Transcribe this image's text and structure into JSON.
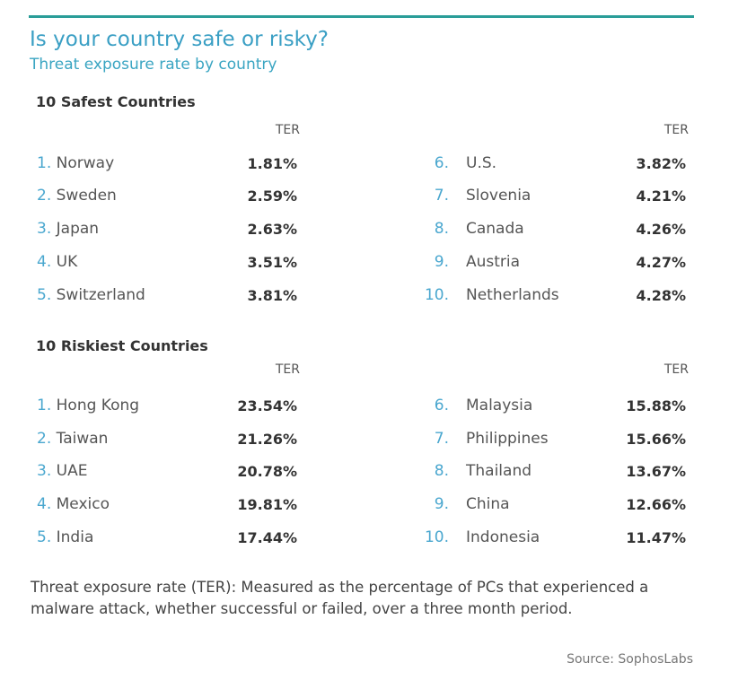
{
  "title": "Is your country safe or risky?",
  "subtitle": "Threat exposure rate by country",
  "column_label": "TER",
  "safest": {
    "heading": "10 Safest Countries",
    "rows": [
      {
        "rank": "1.",
        "country": "Norway",
        "ter": "1.81%"
      },
      {
        "rank": "2.",
        "country": "Sweden",
        "ter": "2.59%"
      },
      {
        "rank": "3.",
        "country": "Japan",
        "ter": "2.63%"
      },
      {
        "rank": "4.",
        "country": "UK",
        "ter": "3.51%"
      },
      {
        "rank": "5.",
        "country": "Switzerland",
        "ter": "3.81%"
      },
      {
        "rank": "6.",
        "country": "U.S.",
        "ter": "3.82%"
      },
      {
        "rank": "7.",
        "country": "Slovenia",
        "ter": "4.21%"
      },
      {
        "rank": "8.",
        "country": "Canada",
        "ter": "4.26%"
      },
      {
        "rank": "9.",
        "country": "Austria",
        "ter": "4.27%"
      },
      {
        "rank": "10.",
        "country": "Netherlands",
        "ter": "4.28%"
      }
    ]
  },
  "riskiest": {
    "heading": "10 Riskiest Countries",
    "rows": [
      {
        "rank": "1.",
        "country": "Hong Kong",
        "ter": "23.54%"
      },
      {
        "rank": "2.",
        "country": "Taiwan",
        "ter": "21.26%"
      },
      {
        "rank": "3.",
        "country": "UAE",
        "ter": "20.78%"
      },
      {
        "rank": "4.",
        "country": "Mexico",
        "ter": "19.81%"
      },
      {
        "rank": "5.",
        "country": "India",
        "ter": "17.44%"
      },
      {
        "rank": "6.",
        "country": "Malaysia",
        "ter": "15.88%"
      },
      {
        "rank": "7.",
        "country": "Philippines",
        "ter": "15.66%"
      },
      {
        "rank": "8.",
        "country": "Thailand",
        "ter": "13.67%"
      },
      {
        "rank": "9.",
        "country": "China",
        "ter": "12.66%"
      },
      {
        "rank": "10.",
        "country": "Indonesia",
        "ter": "11.47%"
      }
    ]
  },
  "note": "Threat exposure rate (TER): Measured as the percentage of PCs that experienced a malware attack, whether successful or failed, over a three month period.",
  "source": "Source: SophosLabs",
  "colors": {
    "accent": "#2a9d98",
    "title": "#3a9fc4",
    "rank": "#4aa7cf"
  }
}
